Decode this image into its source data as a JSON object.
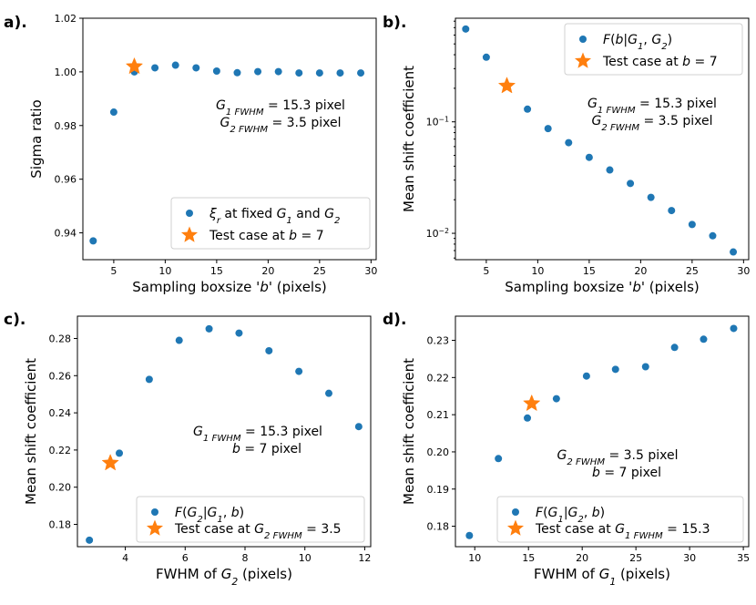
{
  "colors": {
    "series": "#1f77b4",
    "star": "#ff7f0e",
    "frame": "#000000"
  },
  "chart_data": [
    {
      "type": "scatter",
      "panel_label": "a).",
      "xlabel": "Sampling boxsize 'b' (pixels)",
      "ylabel": "Sigma ratio",
      "xlim": [
        2,
        30.5
      ],
      "ylim": [
        0.93,
        1.02
      ],
      "xscale": "linear",
      "yscale": "linear",
      "xticks": [
        5,
        10,
        15,
        20,
        25,
        30
      ],
      "xtick_labels": [
        "5",
        "10",
        "15",
        "20",
        "25",
        "30"
      ],
      "yticks": [
        0.94,
        0.96,
        0.98,
        1.0,
        1.02
      ],
      "ytick_labels": [
        "0.94",
        "0.96",
        "0.98",
        "1.00",
        "1.02"
      ],
      "grid": false,
      "legend_position": "lower-right",
      "legend": [
        "ξ_r at fixed G_1 and G_2",
        "Test case at b = 7"
      ],
      "annotation": [
        "G_1 FWHM = 15.3 pixel",
        "G_2 FWHM = 3.5 pixel"
      ],
      "series": [
        {
          "marker": "circle",
          "x": [
            3,
            5,
            7,
            9,
            11,
            13,
            15,
            17,
            19,
            21,
            23,
            25,
            27,
            29
          ],
          "y": [
            0.937,
            0.985,
            1.0,
            1.0015,
            1.0025,
            1.0015,
            1.0003,
            0.9997,
            1.0001,
            1.0001,
            0.9996,
            0.9996,
            0.9996,
            0.9996
          ]
        },
        {
          "marker": "star",
          "x": [
            7
          ],
          "y": [
            1.002
          ]
        }
      ]
    },
    {
      "type": "scatter",
      "panel_label": "b).",
      "xlabel": "Sampling boxsize 'b' (pixels)",
      "ylabel": "Mean shift coefficient",
      "xlim": [
        2,
        30.5
      ],
      "ylim": [
        0.0058,
        0.85
      ],
      "xscale": "linear",
      "yscale": "log",
      "xticks": [
        5,
        10,
        15,
        20,
        25,
        30
      ],
      "xtick_labels": [
        "5",
        "10",
        "15",
        "20",
        "25",
        "30"
      ],
      "yticks": [
        0.01,
        0.1
      ],
      "ytick_labels": [
        "10^-2",
        "10^-1"
      ],
      "grid": false,
      "legend_position": "top-right",
      "legend": [
        "F(b|G_1, G_2)",
        "Test case at b = 7"
      ],
      "annotation": [
        "G_1 FWHM = 15.3 pixel",
        "G_2 FWHM = 3.5 pixel"
      ],
      "series": [
        {
          "marker": "circle",
          "x": [
            3,
            5,
            9,
            11,
            13,
            15,
            17,
            19,
            21,
            23,
            25,
            27,
            29
          ],
          "y": [
            0.68,
            0.38,
            0.13,
            0.087,
            0.065,
            0.048,
            0.037,
            0.028,
            0.021,
            0.016,
            0.012,
            0.0095,
            0.0068
          ]
        },
        {
          "marker": "star",
          "x": [
            7
          ],
          "y": [
            0.21
          ]
        }
      ]
    },
    {
      "type": "scatter",
      "panel_label": "c).",
      "xlabel": "FWHM of G_2 (pixels)",
      "ylabel": "Mean shift coefficient",
      "xlim": [
        2.4,
        12.2
      ],
      "ylim": [
        0.168,
        0.292
      ],
      "xscale": "linear",
      "yscale": "linear",
      "xticks": [
        4,
        6,
        8,
        10,
        12
      ],
      "xtick_labels": [
        "4",
        "6",
        "8",
        "10",
        "12"
      ],
      "yticks": [
        0.18,
        0.2,
        0.22,
        0.24,
        0.26,
        0.28
      ],
      "ytick_labels": [
        "0.18",
        "0.20",
        "0.22",
        "0.24",
        "0.26",
        "0.28"
      ],
      "grid": false,
      "legend_position": "lower-right",
      "legend": [
        "F(G_2|G_1, b)",
        "Test case at G_2 FWHM = 3.5"
      ],
      "annotation": [
        "G_1 FWHM = 15.3 pixel",
        "b = 7 pixel"
      ],
      "series": [
        {
          "marker": "circle",
          "x": [
            2.8,
            3.8,
            4.8,
            5.8,
            6.8,
            7.8,
            8.8,
            9.8,
            10.8,
            11.8
          ],
          "y": [
            0.1715,
            0.2183,
            0.258,
            0.279,
            0.2852,
            0.2829,
            0.2734,
            0.2623,
            0.2505,
            0.2326
          ]
        },
        {
          "marker": "star",
          "x": [
            3.5
          ],
          "y": [
            0.213
          ]
        }
      ]
    },
    {
      "type": "scatter",
      "panel_label": "d).",
      "xlabel": "FWHM of G_1 (pixels)",
      "ylabel": "Mean shift coefficient",
      "xlim": [
        8.2,
        35.5
      ],
      "ylim": [
        0.1745,
        0.2365
      ],
      "xscale": "linear",
      "yscale": "linear",
      "xticks": [
        10,
        15,
        20,
        25,
        30,
        35
      ],
      "xtick_labels": [
        "10",
        "15",
        "20",
        "25",
        "30",
        "35"
      ],
      "yticks": [
        0.18,
        0.19,
        0.2,
        0.21,
        0.22,
        0.23
      ],
      "ytick_labels": [
        "0.18",
        "0.19",
        "0.20",
        "0.21",
        "0.22",
        "0.23"
      ],
      "grid": false,
      "legend_position": "lower-right",
      "legend": [
        "F(G_1|G_2, b)",
        "Test case at G_1 FWHM = 15.3"
      ],
      "annotation": [
        "G_2 FWHM = 3.5 pixel",
        "b = 7 pixel"
      ],
      "series": [
        {
          "marker": "circle",
          "x": [
            9.5,
            12.2,
            14.9,
            17.6,
            20.4,
            23.1,
            25.9,
            28.6,
            31.3,
            34.1
          ],
          "y": [
            0.1775,
            0.1982,
            0.2091,
            0.2143,
            0.2204,
            0.2222,
            0.2229,
            0.2281,
            0.2303,
            0.2332
          ]
        },
        {
          "marker": "star",
          "x": [
            15.3
          ],
          "y": [
            0.213
          ]
        }
      ]
    }
  ]
}
